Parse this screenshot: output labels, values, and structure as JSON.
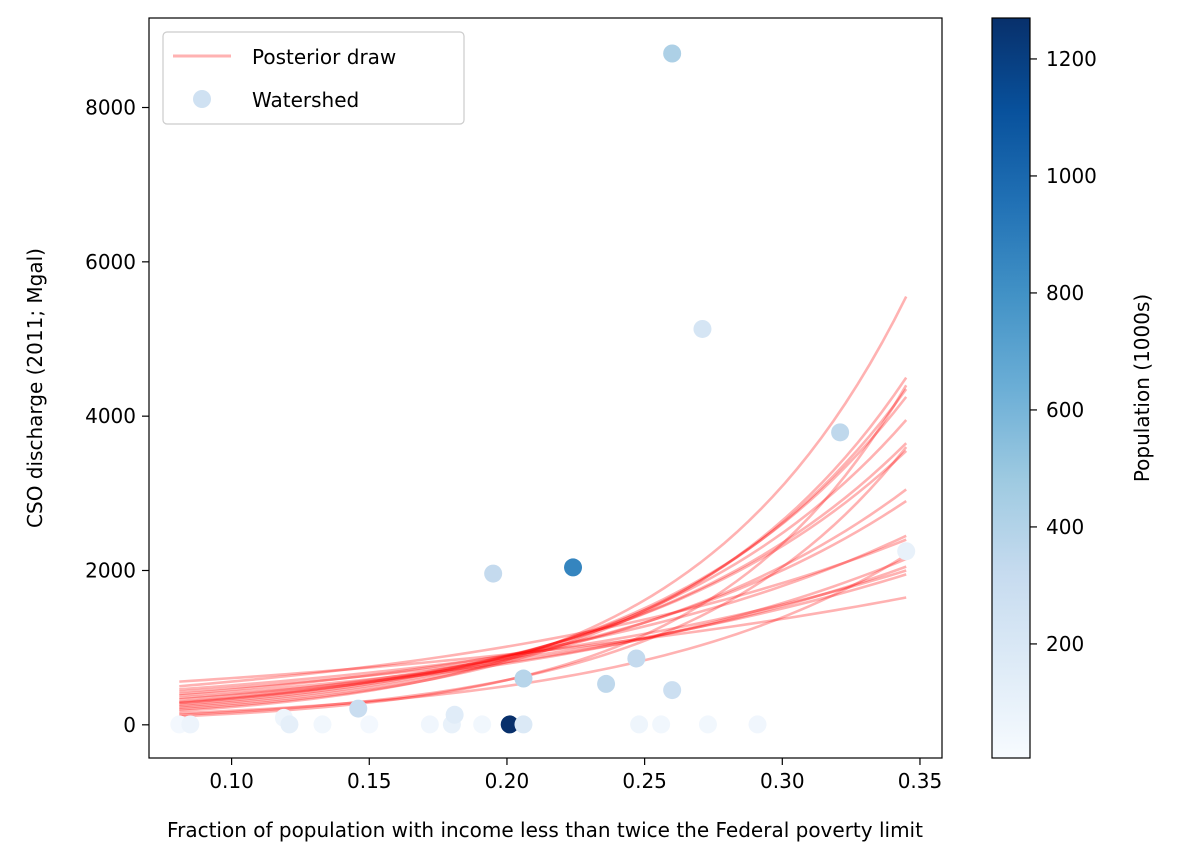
{
  "chart_data": {
    "type": "scatter",
    "xlabel": "Fraction of population with income less than twice the Federal poverty limit",
    "ylabel": "CSO discharge (2011; Mgal)",
    "xlim": [
      0.07,
      0.358
    ],
    "ylim": [
      -430,
      9160
    ],
    "xticks": [
      0.1,
      0.15,
      0.2,
      0.25,
      0.3,
      0.35
    ],
    "xtick_labels": [
      "0.10",
      "0.15",
      "0.20",
      "0.25",
      "0.30",
      "0.35"
    ],
    "yticks": [
      0,
      2000,
      4000,
      6000,
      8000
    ],
    "ytick_labels": [
      "0",
      "2000",
      "4000",
      "6000",
      "8000"
    ],
    "grid": false,
    "legend": {
      "placement": "top-left",
      "entries": [
        {
          "label": "Posterior draw",
          "kind": "line",
          "color": "#ff6b6b"
        },
        {
          "label": "Watershed",
          "kind": "marker",
          "color": "#cfe1f2"
        }
      ]
    },
    "colorbar": {
      "label": "Population (1000s)",
      "colormap": "Blues",
      "range": [
        5,
        1270
      ],
      "ticks": [
        200,
        400,
        600,
        800,
        1000,
        1200
      ],
      "tick_labels": [
        "200",
        "400",
        "600",
        "800",
        "1000",
        "1200"
      ]
    },
    "posterior_curves": {
      "name": "Posterior draw",
      "color": "#ff0000",
      "opacity": 0.3,
      "x_range": [
        0.081,
        0.345
      ],
      "endpoints": [
        [
          560,
          1650
        ],
        [
          500,
          2400
        ],
        [
          460,
          2000
        ],
        [
          430,
          1950
        ],
        [
          400,
          2450
        ],
        [
          380,
          2050
        ],
        [
          350,
          2150
        ],
        [
          330,
          2900
        ],
        [
          300,
          3050
        ],
        [
          290,
          3550
        ],
        [
          280,
          3650
        ],
        [
          260,
          3950
        ],
        [
          240,
          4250
        ],
        [
          220,
          4350
        ],
        [
          200,
          4500
        ],
        [
          180,
          5550
        ],
        [
          150,
          2200
        ],
        [
          130,
          3600
        ],
        [
          110,
          4400
        ]
      ]
    },
    "points": [
      {
        "x": 0.081,
        "y": 5,
        "pop": 30
      },
      {
        "x": 0.085,
        "y": 5,
        "pop": 70
      },
      {
        "x": 0.119,
        "y": 90,
        "pop": 60
      },
      {
        "x": 0.121,
        "y": 5,
        "pop": 120
      },
      {
        "x": 0.133,
        "y": 5,
        "pop": 40
      },
      {
        "x": 0.146,
        "y": 210,
        "pop": 300
      },
      {
        "x": 0.15,
        "y": 5,
        "pop": 30
      },
      {
        "x": 0.172,
        "y": 5,
        "pop": 50
      },
      {
        "x": 0.18,
        "y": 5,
        "pop": 100
      },
      {
        "x": 0.181,
        "y": 130,
        "pop": 150
      },
      {
        "x": 0.191,
        "y": 5,
        "pop": 40
      },
      {
        "x": 0.195,
        "y": 1960,
        "pop": 330
      },
      {
        "x": 0.201,
        "y": 5,
        "pop": 1270
      },
      {
        "x": 0.206,
        "y": 600,
        "pop": 380
      },
      {
        "x": 0.206,
        "y": 5,
        "pop": 180
      },
      {
        "x": 0.224,
        "y": 2040,
        "pop": 860
      },
      {
        "x": 0.236,
        "y": 530,
        "pop": 350
      },
      {
        "x": 0.247,
        "y": 860,
        "pop": 330
      },
      {
        "x": 0.248,
        "y": 5,
        "pop": 60
      },
      {
        "x": 0.256,
        "y": 5,
        "pop": 40
      },
      {
        "x": 0.26,
        "y": 8700,
        "pop": 420
      },
      {
        "x": 0.26,
        "y": 450,
        "pop": 280
      },
      {
        "x": 0.271,
        "y": 5130,
        "pop": 220
      },
      {
        "x": 0.273,
        "y": 5,
        "pop": 40
      },
      {
        "x": 0.291,
        "y": 5,
        "pop": 50
      },
      {
        "x": 0.321,
        "y": 3790,
        "pop": 350
      },
      {
        "x": 0.345,
        "y": 2250,
        "pop": 100
      }
    ]
  }
}
